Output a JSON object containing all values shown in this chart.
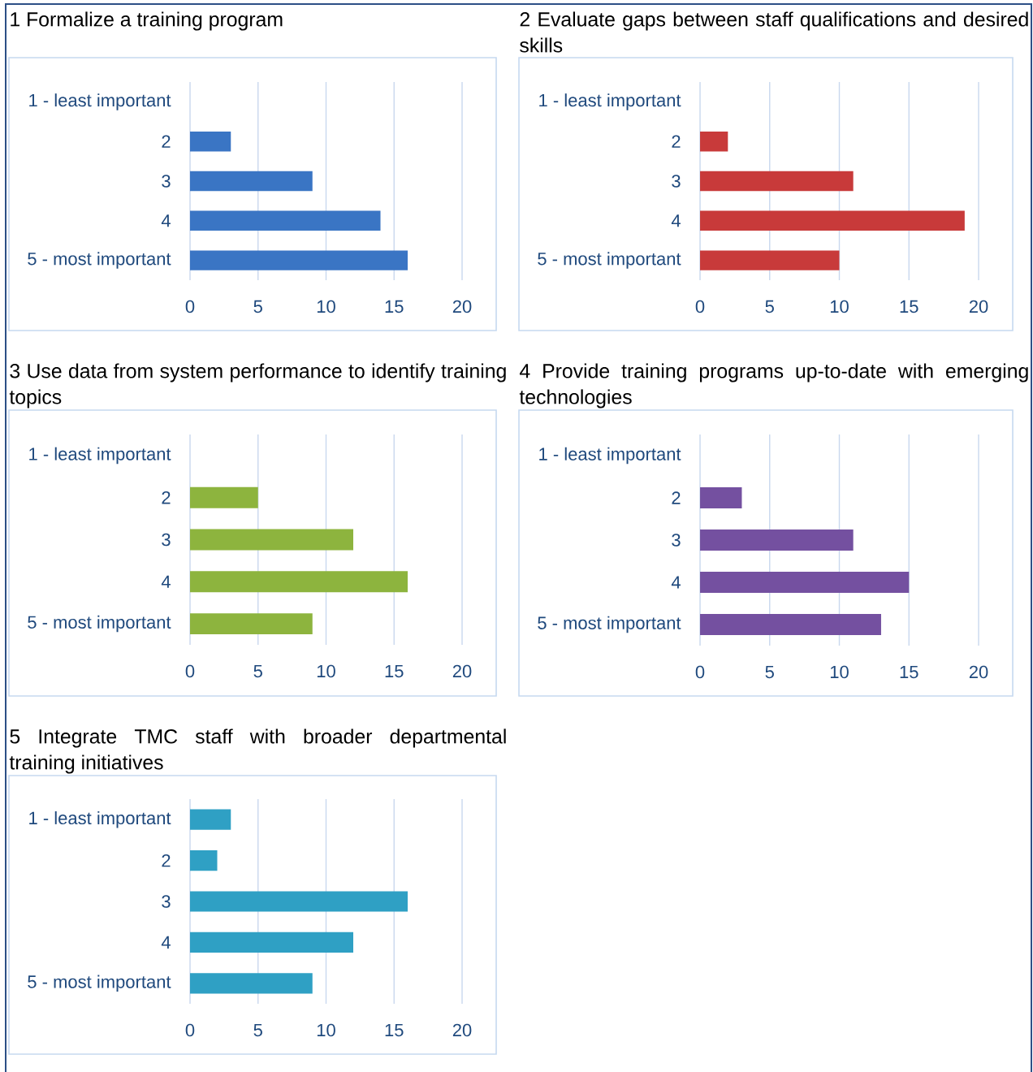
{
  "chart_data": [
    {
      "type": "bar",
      "orientation": "horizontal",
      "title": "1 Formalize a training program",
      "categories": [
        "1 - least important",
        "2",
        "3",
        "4",
        "5 - most important"
      ],
      "values": [
        0,
        3,
        9,
        14,
        16
      ],
      "color": "#3a75c4",
      "xlim": [
        0,
        20
      ],
      "xticks": [
        0,
        5,
        10,
        15,
        20
      ],
      "grid": "x"
    },
    {
      "type": "bar",
      "orientation": "horizontal",
      "title": "2 Evaluate gaps between staff qualifications and desired skills",
      "categories": [
        "1 - least important",
        "2",
        "3",
        "4",
        "5 - most important"
      ],
      "values": [
        0,
        2,
        11,
        19,
        10
      ],
      "color": "#c83a3a",
      "xlim": [
        0,
        20
      ],
      "xticks": [
        0,
        5,
        10,
        15,
        20
      ],
      "grid": "x"
    },
    {
      "type": "bar",
      "orientation": "horizontal",
      "title": "3 Use data from system performance to identify training topics",
      "categories": [
        "1 - least important",
        "2",
        "3",
        "4",
        "5 - most important"
      ],
      "values": [
        0,
        5,
        12,
        16,
        9
      ],
      "color": "#8db43e",
      "xlim": [
        0,
        20
      ],
      "xticks": [
        0,
        5,
        10,
        15,
        20
      ],
      "grid": "x"
    },
    {
      "type": "bar",
      "orientation": "horizontal",
      "title": "4 Provide training programs up-to-date with emerging technologies",
      "categories": [
        "1 - least important",
        "2",
        "3",
        "4",
        "5 - most important"
      ],
      "values": [
        0,
        3,
        11,
        15,
        13
      ],
      "color": "#7450a0",
      "xlim": [
        0,
        20
      ],
      "xticks": [
        0,
        5,
        10,
        15,
        20
      ],
      "grid": "x"
    },
    {
      "type": "bar",
      "orientation": "horizontal",
      "title": "5 Integrate TMC staff with broader departmental training initiatives",
      "categories": [
        "1 - least important",
        "2",
        "3",
        "4",
        "5 - most important"
      ],
      "values": [
        3,
        2,
        16,
        12,
        9
      ],
      "color": "#2fa0c4",
      "xlim": [
        0,
        20
      ],
      "xticks": [
        0,
        5,
        10,
        15,
        20
      ],
      "grid": "x"
    }
  ]
}
